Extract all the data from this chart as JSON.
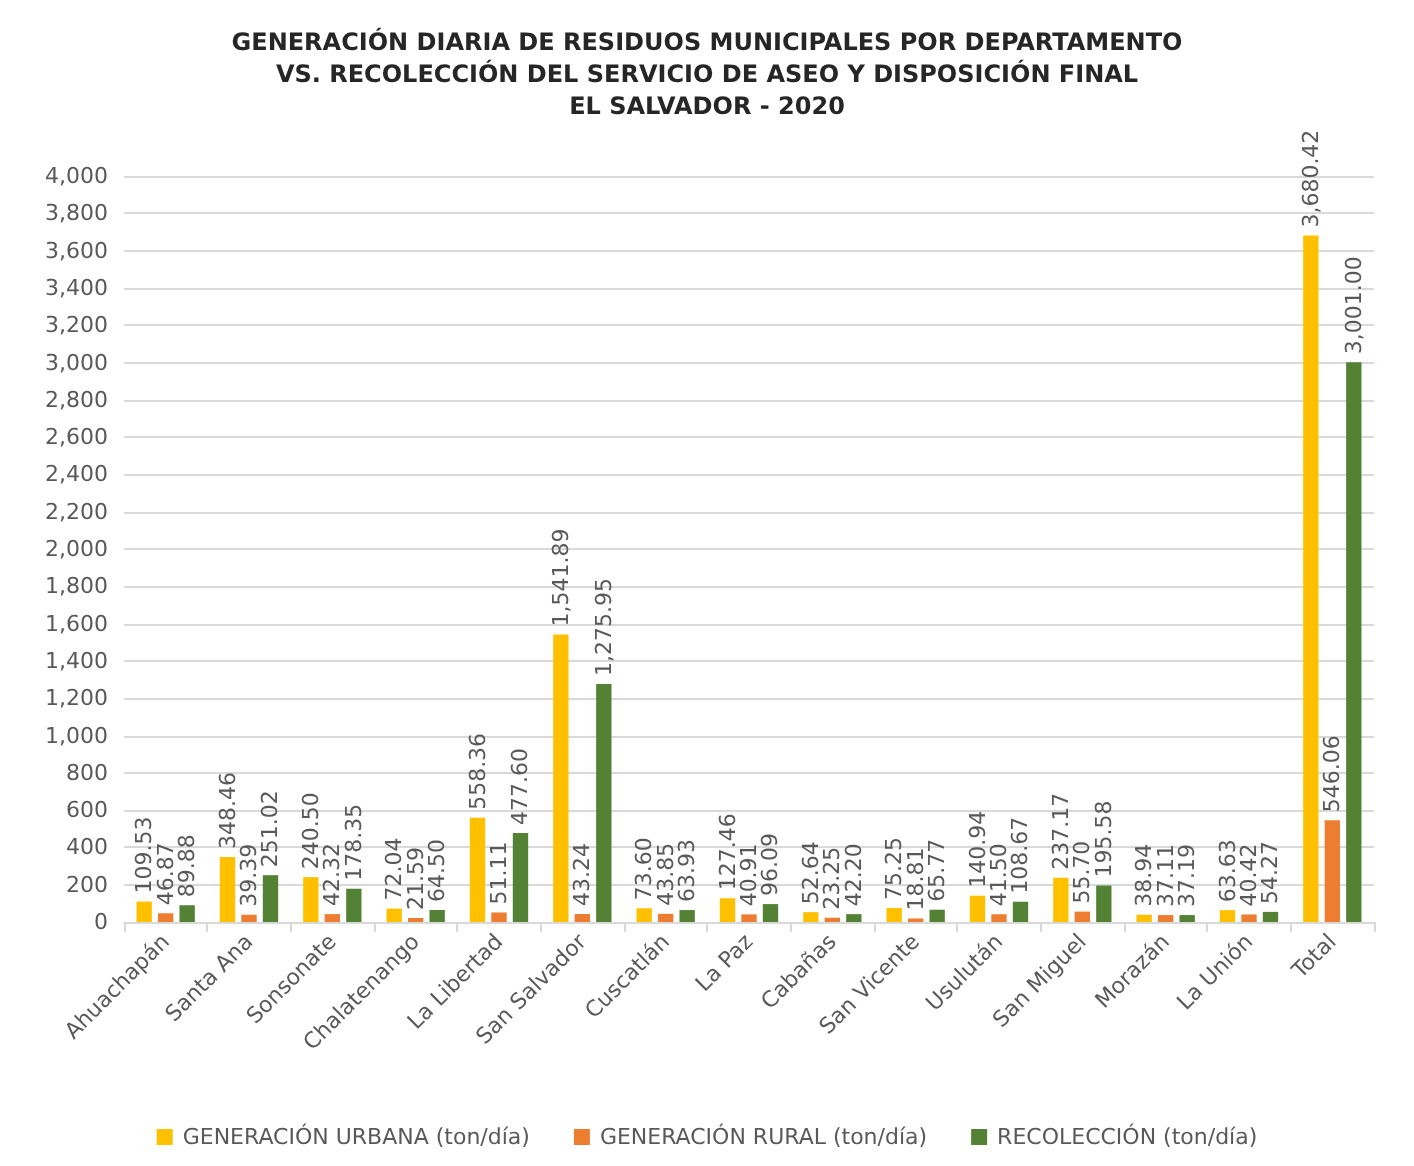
{
  "chart_data": {
    "type": "bar",
    "title": "GENERACIÓN DIARIA DE RESIDUOS MUNICIPALES POR DEPARTAMENTO\nVS. RECOLECCIÓN DEL SERVICIO DE ASEO Y DISPOSICIÓN FINAL\nEL SALVADOR - 2020",
    "categories": [
      "Ahuachapán",
      "Santa Ana",
      "Sonsonate",
      "Chalatenango",
      "La Libertad",
      "San Salvador",
      "Cuscatlán",
      "La Paz",
      "Cabañas",
      "San Vicente",
      "Usulután",
      "San Miguel",
      "Morazán",
      "La Unión",
      "Total"
    ],
    "series": [
      {
        "name": "GENERACIÓN URBANA (ton/día)",
        "color": "#ffc000",
        "values": [
          109.53,
          348.46,
          240.5,
          72.04,
          558.36,
          1541.89,
          73.6,
          127.46,
          52.64,
          75.25,
          140.94,
          237.17,
          38.94,
          63.63,
          3680.42
        ],
        "value_labels": [
          "109.53",
          "348.46",
          "240.50",
          "72.04",
          "558.36",
          "1,541.89",
          "73.60",
          "127.46",
          "52.64",
          "75.25",
          "140.94",
          "237.17",
          "38.94",
          "63.63",
          "3,680.42"
        ]
      },
      {
        "name": "GENERACIÓN RURAL (ton/día)",
        "color": "#ed7d31",
        "values": [
          46.87,
          39.39,
          42.32,
          21.59,
          51.11,
          43.24,
          43.85,
          40.91,
          23.25,
          18.81,
          41.5,
          55.7,
          37.11,
          40.42,
          546.06
        ],
        "value_labels": [
          "46.87",
          "39.39",
          "42.32",
          "21.59",
          "51.11",
          "43.24",
          "43.85",
          "40.91",
          "23.25",
          "18.81",
          "41.50",
          "55.70",
          "37.11",
          "40.42",
          "546.06"
        ]
      },
      {
        "name": "RECOLECCIÓN (ton/día)",
        "color": "#548235",
        "values": [
          89.88,
          251.02,
          178.35,
          64.5,
          477.6,
          1275.95,
          63.93,
          96.09,
          42.2,
          65.77,
          108.67,
          195.58,
          37.19,
          54.27,
          3001.0
        ],
        "value_labels": [
          "89.88",
          "251.02",
          "178.35",
          "64.50",
          "477.60",
          "1,275.95",
          "63.93",
          "96.09",
          "42.20",
          "65.77",
          "108.67",
          "195.58",
          "37.19",
          "54.27",
          "3,001.00"
        ]
      }
    ],
    "ylim": [
      0,
      4000
    ],
    "yticks": [
      0,
      200,
      400,
      600,
      800,
      {
        "value": 1000,
        "label": "1,000"
      },
      {
        "value": 1200,
        "label": "1,200"
      },
      {
        "value": 1400,
        "label": "1,400"
      },
      {
        "value": 1600,
        "label": "1,600"
      },
      {
        "value": 1800,
        "label": "1,800"
      },
      {
        "value": 2000,
        "label": "2,000"
      },
      {
        "value": 2200,
        "label": "2,200"
      },
      {
        "value": 2400,
        "label": "2,400"
      },
      {
        "value": 2600,
        "label": "2,600"
      },
      {
        "value": 2800,
        "label": "2,800"
      },
      {
        "value": 3000,
        "label": "3,000"
      },
      {
        "value": 3200,
        "label": "3,200"
      },
      {
        "value": 3400,
        "label": "3,400"
      },
      {
        "value": 3600,
        "label": "3,600"
      },
      {
        "value": 3800,
        "label": "3,800"
      },
      {
        "value": 4000,
        "label": "4,000"
      }
    ],
    "grid": "y",
    "legend": "bottom"
  }
}
